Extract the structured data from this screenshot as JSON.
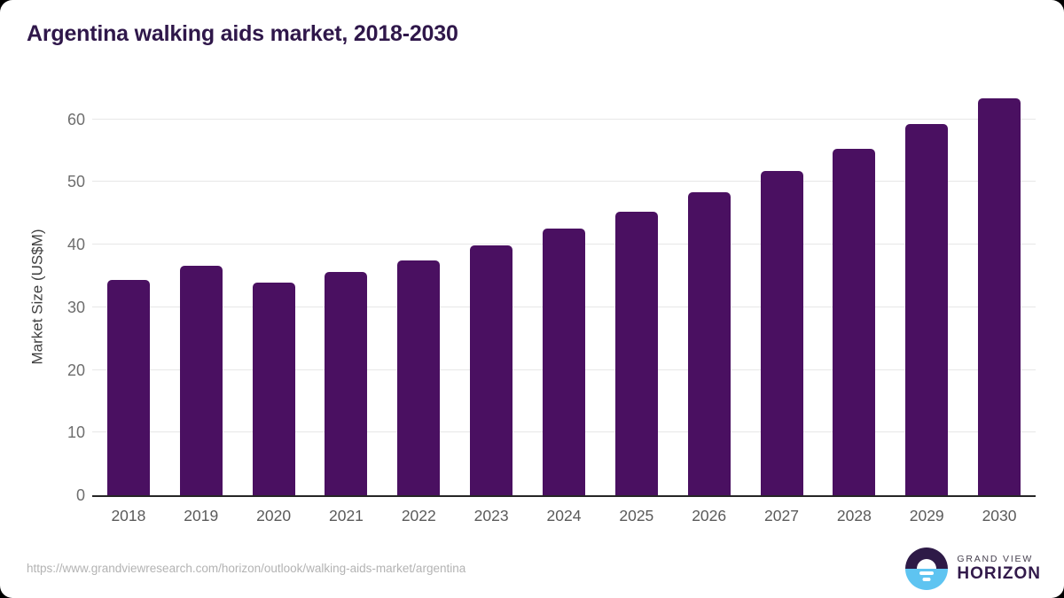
{
  "title": "Argentina walking aids market, 2018-2030",
  "chart_data": {
    "type": "bar",
    "title": "Argentina walking aids market, 2018-2030",
    "categories": [
      "2018",
      "2019",
      "2020",
      "2021",
      "2022",
      "2023",
      "2024",
      "2025",
      "2026",
      "2027",
      "2028",
      "2029",
      "2030"
    ],
    "values": [
      34.4,
      36.6,
      34.0,
      35.6,
      37.5,
      39.9,
      42.6,
      45.3,
      48.4,
      51.8,
      55.3,
      59.2,
      63.3
    ],
    "xlabel": "",
    "ylabel": "Market Size (US$M)",
    "ylim": [
      0,
      63.5
    ],
    "yticks": [
      0,
      10,
      20,
      30,
      40,
      50,
      60
    ],
    "grid": true,
    "legend_position": "none",
    "bar_color": "#4a1061"
  },
  "colors": {
    "title_text": "#2f174a",
    "bar": "#4a1061",
    "gridline": "#e7e7e7",
    "axis_line": "#262626",
    "tick_text": "#6e6e6e",
    "url_text": "#b3b3b3",
    "logo_dark": "#2e1a47",
    "logo_blue": "#5ec4f1"
  },
  "footer": {
    "source_url": "https://www.grandviewresearch.com/horizon/outlook/walking-aids-market/argentina",
    "brand_line1": "GRAND VIEW",
    "brand_line2": "HORIZON"
  }
}
